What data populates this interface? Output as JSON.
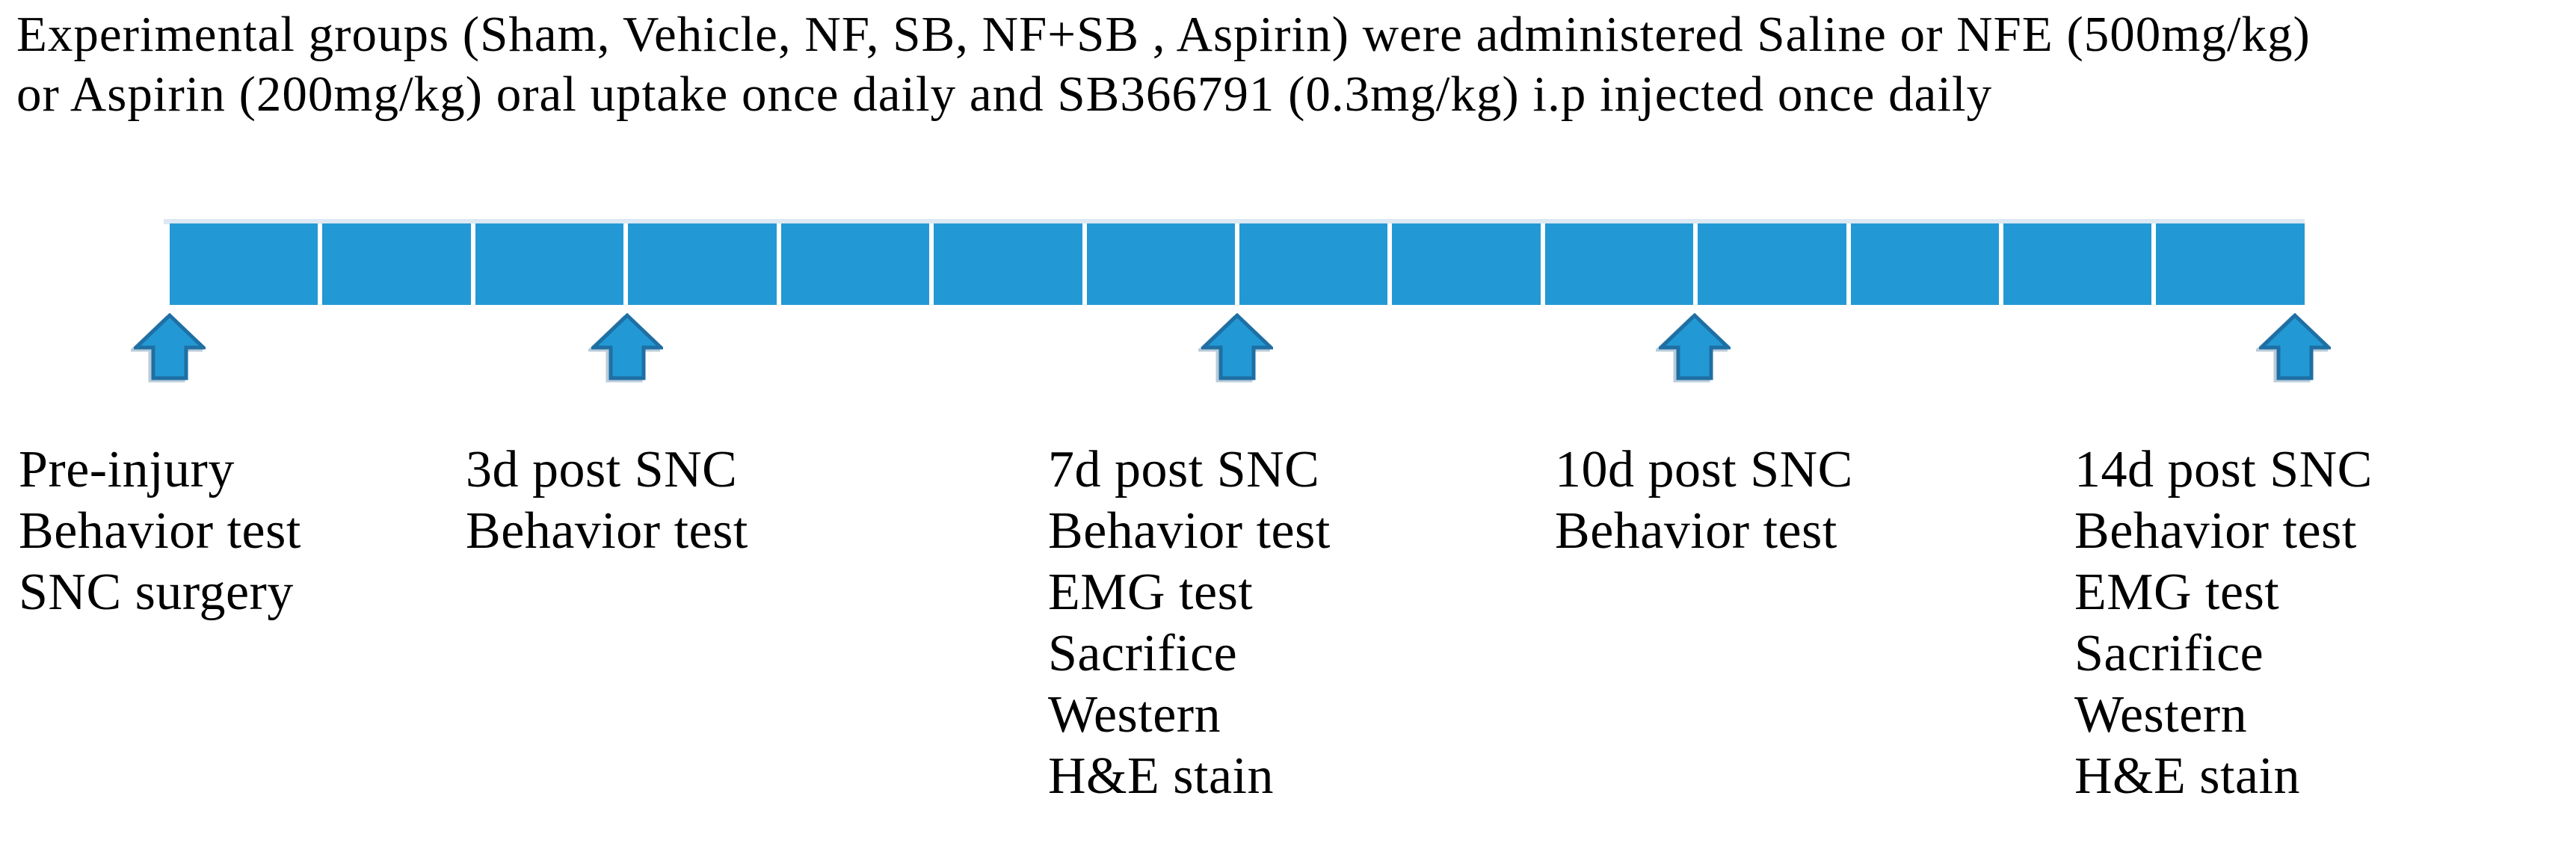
{
  "title": {
    "line1": "Experimental groups (Sham, Vehicle, NF, SB, NF+SB , Aspirin) were administered Saline or NFE (500mg/kg)",
    "line2": "or Aspirin (200mg/kg) oral uptake once daily and SB366791 (0.3mg/kg) i.p injected once daily"
  },
  "colors": {
    "bar_fill": "#2299d4",
    "bar_gap": "#ffffff",
    "bar_top_highlight": "#dce8f3",
    "arrow_fill": "#2299d4",
    "arrow_outline": "#1e6fa4",
    "text": "#000000"
  },
  "timeline": {
    "total_days": 14,
    "segment_count": 14,
    "arrow_days": [
      0,
      3,
      7,
      10,
      14
    ]
  },
  "events": [
    {
      "day": 0,
      "lines": [
        "Pre-injury",
        "Behavior test",
        "SNC surgery"
      ]
    },
    {
      "day": 3,
      "lines": [
        "3d post SNC",
        "Behavior test"
      ]
    },
    {
      "day": 7,
      "lines": [
        "7d post SNC",
        "Behavior test",
        "EMG test",
        "Sacrifice",
        "Western",
        "H&E stain"
      ]
    },
    {
      "day": 10,
      "lines": [
        "10d post SNC",
        "Behavior test"
      ]
    },
    {
      "day": 14,
      "lines": [
        "14d post SNC",
        "Behavior test",
        "EMG test",
        "Sacrifice",
        "Western",
        "H&E stain"
      ]
    }
  ]
}
